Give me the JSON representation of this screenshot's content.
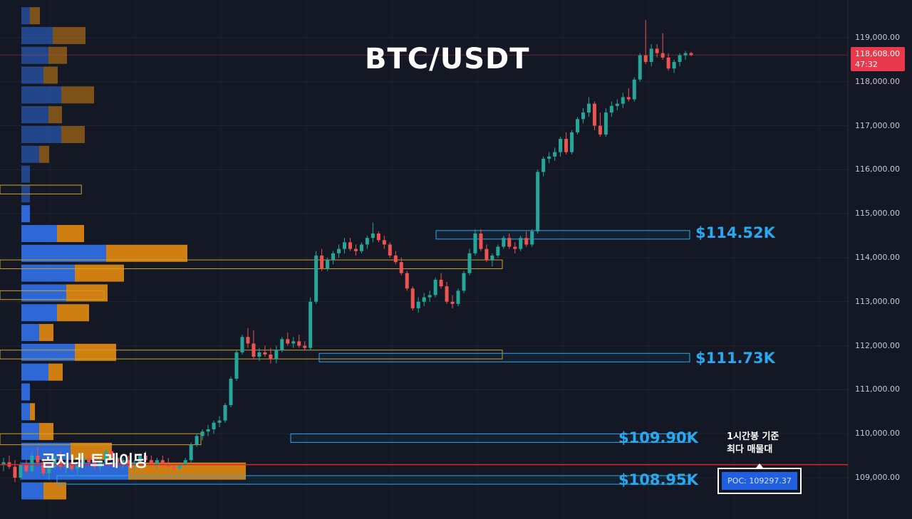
{
  "title": "BTC/USDT",
  "brand": "곰지네 트레이딩",
  "current_price": {
    "value": "118,608.00",
    "countdown": "47:32",
    "color": "#e83a4a"
  },
  "note": {
    "line1": "1시간봉 기준",
    "line2": "최다 매물대"
  },
  "poc": {
    "label": "POC: 109297.37",
    "value": 109297.37
  },
  "levels": [
    {
      "label": "$114.52K",
      "price": 114520
    },
    {
      "label": "$111.73K",
      "price": 111730
    },
    {
      "label": "$109.90K",
      "price": 109900
    },
    {
      "label": "$108.95K",
      "price": 108950
    }
  ],
  "colors": {
    "up": "#26a69a",
    "down": "#ef5350",
    "volume_buy": "#2f6de0",
    "volume_sell": "#e38b10",
    "level_box": "#29a8f0",
    "poc_line": "#d8242f",
    "zone_box": "#c9a227"
  },
  "chart_data": {
    "type": "candlestick",
    "title": "BTC/USDT",
    "timeframe": "1시간봉",
    "ylim": [
      108000,
      119700
    ],
    "y_ticks": [
      {
        "value": 109000,
        "label": "109,000.00"
      },
      {
        "value": 110000,
        "label": "110,000.00"
      },
      {
        "value": 111000,
        "label": "111,000.00"
      },
      {
        "value": 112000,
        "label": "112,000.00"
      },
      {
        "value": 113000,
        "label": "113,000.00"
      },
      {
        "value": 114000,
        "label": "114,000.00"
      },
      {
        "value": 115000,
        "label": "115,000.00"
      },
      {
        "value": 116000,
        "label": "116,000.00"
      },
      {
        "value": 117000,
        "label": "117,000.00"
      },
      {
        "value": 118000,
        "label": "118,000.00"
      },
      {
        "value": 119000,
        "label": "119,000.00"
      }
    ],
    "candles": [
      [
        109300,
        109450,
        109150,
        109350
      ],
      [
        109350,
        109500,
        109200,
        109250
      ],
      [
        109250,
        109400,
        108900,
        109000
      ],
      [
        109000,
        109350,
        108950,
        109300
      ],
      [
        109300,
        109400,
        109100,
        109150
      ],
      [
        109150,
        109600,
        109100,
        109500
      ],
      [
        109500,
        109700,
        109300,
        109350
      ],
      [
        109350,
        109450,
        109050,
        109100
      ],
      [
        109100,
        109300,
        108950,
        109250
      ],
      [
        109250,
        109500,
        109200,
        109450
      ],
      [
        109450,
        109600,
        109200,
        109250
      ],
      [
        109250,
        109400,
        109100,
        109350
      ],
      [
        109350,
        109450,
        109150,
        109200
      ],
      [
        109200,
        109350,
        109050,
        109300
      ],
      [
        109300,
        109500,
        109250,
        109450
      ],
      [
        109450,
        109550,
        109300,
        109350
      ],
      [
        109350,
        109450,
        109200,
        109250
      ],
      [
        109250,
        109400,
        109150,
        109350
      ],
      [
        109350,
        109650,
        109300,
        109600
      ],
      [
        109600,
        109700,
        109400,
        109450
      ],
      [
        109450,
        109550,
        109300,
        109350
      ],
      [
        109350,
        109450,
        109200,
        109400
      ],
      [
        109400,
        109500,
        109250,
        109300
      ],
      [
        109300,
        109400,
        109150,
        109350
      ],
      [
        109350,
        109550,
        109300,
        109500
      ],
      [
        109500,
        109600,
        109350,
        109400
      ],
      [
        109400,
        109500,
        109250,
        109300
      ],
      [
        109300,
        109450,
        109200,
        109400
      ],
      [
        109400,
        109500,
        109250,
        109300
      ],
      [
        109300,
        109450,
        109150,
        109250
      ],
      [
        109250,
        109300,
        109150,
        109200
      ],
      [
        109200,
        109350,
        109150,
        109300
      ],
      [
        109300,
        109450,
        109250,
        109400
      ],
      [
        109400,
        109800,
        109350,
        109750
      ],
      [
        109750,
        110000,
        109700,
        109950
      ],
      [
        109950,
        110100,
        109850,
        110050
      ],
      [
        110050,
        110200,
        109950,
        110100
      ],
      [
        110100,
        110300,
        110000,
        110250
      ],
      [
        110250,
        110400,
        110150,
        110300
      ],
      [
        110300,
        110700,
        110250,
        110650
      ],
      [
        110650,
        111300,
        110600,
        111250
      ],
      [
        111250,
        111900,
        111200,
        111850
      ],
      [
        111850,
        112250,
        111800,
        112200
      ],
      [
        112200,
        112400,
        111950,
        112050
      ],
      [
        112050,
        112350,
        111700,
        111750
      ],
      [
        111750,
        111950,
        111650,
        111850
      ],
      [
        111850,
        112000,
        111750,
        111800
      ],
      [
        111800,
        111950,
        111600,
        111700
      ],
      [
        111700,
        112000,
        111600,
        111900
      ],
      [
        111900,
        112200,
        111850,
        112150
      ],
      [
        112150,
        112300,
        112000,
        112050
      ],
      [
        112050,
        112200,
        111950,
        112100
      ],
      [
        112100,
        112250,
        111950,
        112000
      ],
      [
        112000,
        112100,
        111900,
        111950
      ],
      [
        111950,
        113100,
        111900,
        113000
      ],
      [
        113000,
        114150,
        112950,
        114050
      ],
      [
        114050,
        114200,
        113700,
        113750
      ],
      [
        113750,
        114000,
        113700,
        113950
      ],
      [
        113950,
        114150,
        113850,
        114100
      ],
      [
        114100,
        114300,
        114000,
        114200
      ],
      [
        114200,
        114450,
        114100,
        114350
      ],
      [
        114350,
        114450,
        114150,
        114200
      ],
      [
        114200,
        114300,
        114050,
        114150
      ],
      [
        114150,
        114350,
        114100,
        114300
      ],
      [
        114300,
        114500,
        114200,
        114450
      ],
      [
        114450,
        114800,
        114350,
        114550
      ],
      [
        114550,
        114600,
        114350,
        114400
      ],
      [
        114400,
        114500,
        114200,
        114300
      ],
      [
        114300,
        114350,
        114000,
        114050
      ],
      [
        114050,
        114150,
        113850,
        113900
      ],
      [
        113900,
        114000,
        113600,
        113650
      ],
      [
        113650,
        113700,
        113250,
        113300
      ],
      [
        113300,
        113350,
        112800,
        112850
      ],
      [
        112850,
        113100,
        112750,
        113000
      ],
      [
        113000,
        113200,
        112900,
        113100
      ],
      [
        113100,
        113250,
        113000,
        113150
      ],
      [
        113150,
        113550,
        113100,
        113500
      ],
      [
        113500,
        113650,
        113300,
        113350
      ],
      [
        113350,
        113450,
        112950,
        113000
      ],
      [
        113000,
        113150,
        112850,
        112950
      ],
      [
        112950,
        113300,
        112900,
        113250
      ],
      [
        113250,
        113700,
        113200,
        113650
      ],
      [
        113650,
        114200,
        113600,
        114100
      ],
      [
        114100,
        114650,
        114050,
        114550
      ],
      [
        114550,
        114650,
        114150,
        114200
      ],
      [
        114200,
        114300,
        113900,
        113950
      ],
      [
        113950,
        114100,
        113800,
        114050
      ],
      [
        114050,
        114300,
        114000,
        114250
      ],
      [
        114250,
        114500,
        114200,
        114450
      ],
      [
        114450,
        114550,
        114200,
        114250
      ],
      [
        114250,
        114350,
        114100,
        114200
      ],
      [
        114200,
        114500,
        114150,
        114450
      ],
      [
        114450,
        114600,
        114250,
        114300
      ],
      [
        114300,
        114650,
        114250,
        114600
      ],
      [
        114600,
        116000,
        114550,
        115950
      ],
      [
        115950,
        116300,
        115850,
        116250
      ],
      [
        116250,
        116400,
        116150,
        116300
      ],
      [
        116300,
        116500,
        116200,
        116400
      ],
      [
        116400,
        116750,
        116300,
        116700
      ],
      [
        116700,
        116850,
        116350,
        116400
      ],
      [
        116400,
        116900,
        116350,
        116850
      ],
      [
        116850,
        117200,
        116800,
        117150
      ],
      [
        117150,
        117400,
        117050,
        117300
      ],
      [
        117300,
        117650,
        117200,
        117500
      ],
      [
        117500,
        117550,
        116900,
        117000
      ],
      [
        117000,
        117300,
        116750,
        116800
      ],
      [
        116800,
        117400,
        116750,
        117300
      ],
      [
        117300,
        117550,
        117200,
        117450
      ],
      [
        117450,
        117600,
        117350,
        117500
      ],
      [
        117500,
        117750,
        117400,
        117650
      ],
      [
        117650,
        117850,
        117550,
        117600
      ],
      [
        117600,
        118100,
        117550,
        118050
      ],
      [
        118050,
        118650,
        118000,
        118600
      ],
      [
        118600,
        119400,
        118400,
        118450
      ],
      [
        118450,
        118850,
        118350,
        118750
      ],
      [
        118750,
        118850,
        118550,
        118650
      ],
      [
        118650,
        119100,
        118500,
        118550
      ],
      [
        118550,
        118650,
        118250,
        118300
      ],
      [
        118300,
        118500,
        118200,
        118450
      ],
      [
        118450,
        118650,
        118350,
        118600
      ],
      [
        118600,
        118700,
        118500,
        118650
      ],
      [
        118650,
        118680,
        118580,
        118608
      ]
    ],
    "volume_profile": [
      {
        "price": 119500,
        "buy": 1.2,
        "sell": 1.4
      },
      {
        "price": 119050,
        "buy": 4.4,
        "sell": 4.6
      },
      {
        "price": 118600,
        "buy": 3.8,
        "sell": 2.6
      },
      {
        "price": 118150,
        "buy": 3.1,
        "sell": 2.0
      },
      {
        "price": 117700,
        "buy": 5.6,
        "sell": 4.6
      },
      {
        "price": 117250,
        "buy": 3.8,
        "sell": 1.9
      },
      {
        "price": 116800,
        "buy": 5.6,
        "sell": 3.3
      },
      {
        "price": 116350,
        "buy": 2.5,
        "sell": 1.4
      },
      {
        "price": 115900,
        "buy": 1.2,
        "sell": 0
      },
      {
        "price": 115450,
        "buy": 1.2,
        "sell": 0
      },
      {
        "price": 115000,
        "buy": 1.2,
        "sell": 0
      },
      {
        "price": 114550,
        "buy": 5.0,
        "sell": 3.8
      },
      {
        "price": 114100,
        "buy": 11.9,
        "sell": 11.4
      },
      {
        "price": 113650,
        "buy": 7.5,
        "sell": 6.9
      },
      {
        "price": 113200,
        "buy": 6.3,
        "sell": 5.8
      },
      {
        "price": 112750,
        "buy": 5.0,
        "sell": 4.5
      },
      {
        "price": 112300,
        "buy": 2.5,
        "sell": 2.0
      },
      {
        "price": 111850,
        "buy": 7.5,
        "sell": 5.8
      },
      {
        "price": 111400,
        "buy": 3.8,
        "sell": 2.0
      },
      {
        "price": 110950,
        "buy": 1.2,
        "sell": 0
      },
      {
        "price": 110500,
        "buy": 1.2,
        "sell": 0.7
      },
      {
        "price": 110050,
        "buy": 2.5,
        "sell": 2.0
      },
      {
        "price": 109600,
        "buy": 6.9,
        "sell": 5.8
      },
      {
        "price": 109150,
        "buy": 15.0,
        "sell": 16.5
      },
      {
        "price": 108700,
        "buy": 3.1,
        "sell": 3.2
      }
    ],
    "value_zones": [
      {
        "bottom": 115450,
        "top": 115650,
        "extent": 16.2
      },
      {
        "bottom": 113750,
        "top": 113950,
        "extent": 100
      },
      {
        "bottom": 113050,
        "top": 113250,
        "extent": 20.7
      },
      {
        "bottom": 111700,
        "top": 111900,
        "extent": 100
      },
      {
        "bottom": 109750,
        "top": 110000,
        "extent": 40
      }
    ]
  }
}
